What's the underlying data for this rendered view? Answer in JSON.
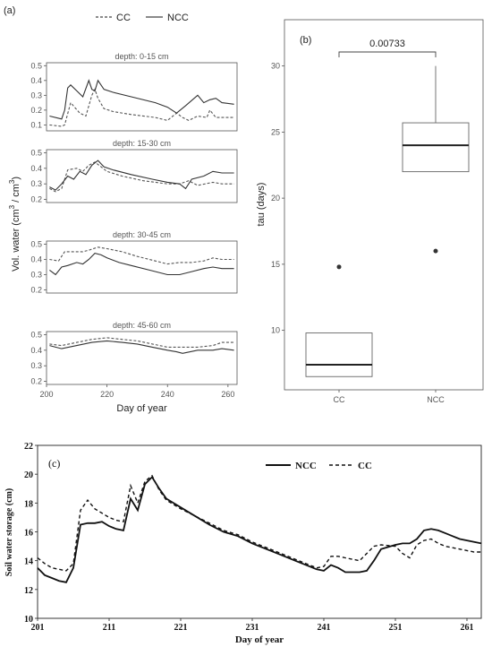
{
  "chart_data": [
    {
      "type": "line",
      "panel_label": "(a)",
      "legend": [
        "CC",
        "NCC"
      ],
      "xlabel": "Day of year",
      "ylabel": "Vol. water (cm",
      "ylabel_sup": "3",
      "ylabel_mid": " / cm",
      "ylabel_end": ")",
      "x_ticks": [
        "200",
        "220",
        "240",
        "260"
      ],
      "xlim": [
        200,
        263
      ],
      "panels": [
        {
          "title": "depth: 0-15 cm",
          "y_ticks": [
            "0.1",
            "0.2",
            "0.3",
            "0.4",
            "0.5"
          ],
          "ylim": [
            0.06,
            0.52
          ],
          "series": [
            {
              "name": "CC",
              "x": [
                201,
                205,
                206,
                208,
                211,
                213,
                215,
                216,
                217,
                219,
                222,
                228,
                236,
                240,
                243,
                245,
                247,
                250,
                253,
                254,
                256,
                258,
                262
              ],
              "y": [
                0.1,
                0.09,
                0.1,
                0.25,
                0.18,
                0.16,
                0.3,
                0.34,
                0.28,
                0.21,
                0.19,
                0.17,
                0.15,
                0.13,
                0.18,
                0.15,
                0.13,
                0.16,
                0.15,
                0.2,
                0.15,
                0.15,
                0.15
              ]
            },
            {
              "name": "NCC",
              "x": [
                201,
                205,
                206,
                207,
                208,
                210,
                212,
                214,
                215,
                216,
                217,
                218,
                219,
                222,
                228,
                236,
                240,
                243,
                246,
                250,
                252,
                254,
                256,
                258,
                262
              ],
              "y": [
                0.16,
                0.14,
                0.2,
                0.35,
                0.37,
                0.33,
                0.29,
                0.4,
                0.34,
                0.33,
                0.4,
                0.37,
                0.34,
                0.32,
                0.29,
                0.25,
                0.22,
                0.18,
                0.23,
                0.3,
                0.25,
                0.27,
                0.28,
                0.25,
                0.24
              ]
            }
          ]
        },
        {
          "title": "depth: 15-30 cm",
          "y_ticks": [
            "0.2",
            "0.3",
            "0.4",
            "0.5"
          ],
          "ylim": [
            0.18,
            0.52
          ],
          "series": [
            {
              "name": "CC",
              "x": [
                201,
                203,
                205,
                207,
                210,
                212,
                214,
                216,
                218,
                220,
                225,
                232,
                240,
                244,
                247,
                250,
                255,
                258,
                262
              ],
              "y": [
                0.27,
                0.25,
                0.27,
                0.39,
                0.4,
                0.38,
                0.42,
                0.44,
                0.41,
                0.38,
                0.35,
                0.32,
                0.3,
                0.3,
                0.32,
                0.29,
                0.31,
                0.3,
                0.3
              ]
            },
            {
              "name": "NCC",
              "x": [
                201,
                203,
                205,
                207,
                209,
                211,
                213,
                215,
                217,
                219,
                222,
                228,
                235,
                240,
                244,
                246,
                248,
                252,
                255,
                258,
                262
              ],
              "y": [
                0.28,
                0.26,
                0.3,
                0.35,
                0.33,
                0.38,
                0.36,
                0.42,
                0.45,
                0.41,
                0.39,
                0.36,
                0.33,
                0.31,
                0.3,
                0.27,
                0.33,
                0.35,
                0.38,
                0.37,
                0.37
              ]
            }
          ]
        },
        {
          "title": "depth: 30-45 cm",
          "y_ticks": [
            "0.2",
            "0.3",
            "0.4",
            "0.5"
          ],
          "ylim": [
            0.18,
            0.52
          ],
          "series": [
            {
              "name": "CC",
              "x": [
                201,
                204,
                206,
                209,
                212,
                214,
                217,
                220,
                225,
                230,
                236,
                240,
                244,
                248,
                252,
                255,
                258,
                262
              ],
              "y": [
                0.4,
                0.39,
                0.45,
                0.45,
                0.45,
                0.46,
                0.48,
                0.47,
                0.45,
                0.42,
                0.39,
                0.37,
                0.38,
                0.38,
                0.39,
                0.41,
                0.4,
                0.4
              ]
            },
            {
              "name": "NCC",
              "x": [
                201,
                203,
                205,
                207,
                210,
                212,
                214,
                216,
                218,
                220,
                224,
                228,
                234,
                240,
                244,
                248,
                252,
                255,
                258,
                262
              ],
              "y": [
                0.33,
                0.3,
                0.35,
                0.36,
                0.38,
                0.37,
                0.4,
                0.44,
                0.43,
                0.41,
                0.38,
                0.36,
                0.33,
                0.3,
                0.3,
                0.32,
                0.34,
                0.35,
                0.34,
                0.34
              ]
            }
          ]
        },
        {
          "title": "depth: 45-60 cm",
          "y_ticks": [
            "0.2",
            "0.3",
            "0.4",
            "0.5"
          ],
          "ylim": [
            0.18,
            0.52
          ],
          "series": [
            {
              "name": "CC",
              "x": [
                201,
                205,
                210,
                215,
                220,
                225,
                230,
                235,
                240,
                245,
                250,
                255,
                258,
                262
              ],
              "y": [
                0.44,
                0.43,
                0.45,
                0.47,
                0.48,
                0.47,
                0.46,
                0.44,
                0.42,
                0.42,
                0.42,
                0.43,
                0.45,
                0.45
              ]
            },
            {
              "name": "NCC",
              "x": [
                201,
                205,
                210,
                215,
                220,
                225,
                230,
                235,
                240,
                243,
                245,
                250,
                255,
                258,
                262
              ],
              "y": [
                0.43,
                0.41,
                0.43,
                0.45,
                0.46,
                0.45,
                0.44,
                0.42,
                0.4,
                0.39,
                0.38,
                0.4,
                0.4,
                0.41,
                0.4
              ]
            }
          ]
        }
      ]
    },
    {
      "type": "box",
      "panel_label": "(b)",
      "ylabel": "tau (days)",
      "categories": [
        "CC",
        "NCC"
      ],
      "y_ticks": [
        "10",
        "15",
        "20",
        "25",
        "30"
      ],
      "ylim": [
        5.5,
        33.5
      ],
      "annotation": "0.00733",
      "boxes": [
        {
          "name": "CC",
          "whisker_low": 6.5,
          "q1": 6.5,
          "median": 7.4,
          "q3": 9.8,
          "whisker_high": 9.8,
          "outliers": [
            14.8
          ]
        },
        {
          "name": "NCC",
          "whisker_low": 22.0,
          "q1": 22.0,
          "median": 24.0,
          "q3": 25.7,
          "whisker_high": 30.0,
          "outliers": [
            16.0
          ]
        }
      ]
    },
    {
      "type": "line",
      "panel_label": "(c)",
      "xlabel": "Day of year",
      "ylabel": "Soil water storage (cm)",
      "x_ticks": [
        "201",
        "211",
        "221",
        "231",
        "241",
        "251",
        "261"
      ],
      "y_ticks": [
        "10",
        "12",
        "14",
        "16",
        "18",
        "20",
        "22"
      ],
      "xlim": [
        201,
        263
      ],
      "ylim": [
        10,
        22
      ],
      "series": [
        {
          "name": "NCC",
          "x": [
            201,
            202,
            203,
            204,
            205,
            206,
            207,
            208,
            209,
            210,
            211,
            212,
            213,
            214,
            215,
            216,
            217,
            218,
            219,
            221,
            223,
            225,
            227,
            229,
            231,
            233,
            235,
            237,
            239,
            240,
            241,
            242,
            243,
            244,
            245,
            246,
            247,
            248,
            249,
            251,
            252,
            253,
            254,
            255,
            256,
            257,
            258,
            259,
            260,
            261,
            262,
            263
          ],
          "y": [
            13.5,
            13.0,
            12.8,
            12.6,
            12.5,
            13.5,
            16.5,
            16.6,
            16.6,
            16.7,
            16.4,
            16.2,
            16.1,
            18.3,
            17.5,
            19.3,
            19.8,
            19.0,
            18.3,
            17.7,
            17.1,
            16.5,
            16.0,
            15.7,
            15.2,
            14.8,
            14.4,
            14.0,
            13.6,
            13.4,
            13.3,
            13.7,
            13.5,
            13.2,
            13.2,
            13.2,
            13.3,
            14.0,
            14.8,
            15.1,
            15.2,
            15.2,
            15.5,
            16.1,
            16.2,
            16.1,
            15.9,
            15.7,
            15.5,
            15.4,
            15.3,
            15.2
          ]
        },
        {
          "name": "CC",
          "x": [
            201,
            202,
            203,
            204,
            205,
            206,
            207,
            208,
            209,
            210,
            211,
            212,
            213,
            214,
            215,
            216,
            217,
            218,
            219,
            221,
            223,
            225,
            227,
            229,
            231,
            233,
            235,
            237,
            239,
            240,
            241,
            242,
            243,
            244,
            245,
            246,
            247,
            248,
            249,
            251,
            252,
            253,
            254,
            255,
            256,
            257,
            258,
            259,
            260,
            261,
            262,
            263
          ],
          "y": [
            14.2,
            13.8,
            13.5,
            13.4,
            13.3,
            13.8,
            17.5,
            18.2,
            17.6,
            17.3,
            17.0,
            16.8,
            16.7,
            19.2,
            18.0,
            19.5,
            19.9,
            18.9,
            18.2,
            17.6,
            17.1,
            16.6,
            16.1,
            15.8,
            15.3,
            14.9,
            14.5,
            14.1,
            13.7,
            13.5,
            13.6,
            14.3,
            14.3,
            14.2,
            14.1,
            14.0,
            14.5,
            15.0,
            15.1,
            15.0,
            14.5,
            14.2,
            15.1,
            15.4,
            15.5,
            15.2,
            15.0,
            14.9,
            14.8,
            14.7,
            14.6,
            14.6
          ]
        }
      ],
      "legend": [
        "NCC",
        "CC"
      ]
    }
  ]
}
